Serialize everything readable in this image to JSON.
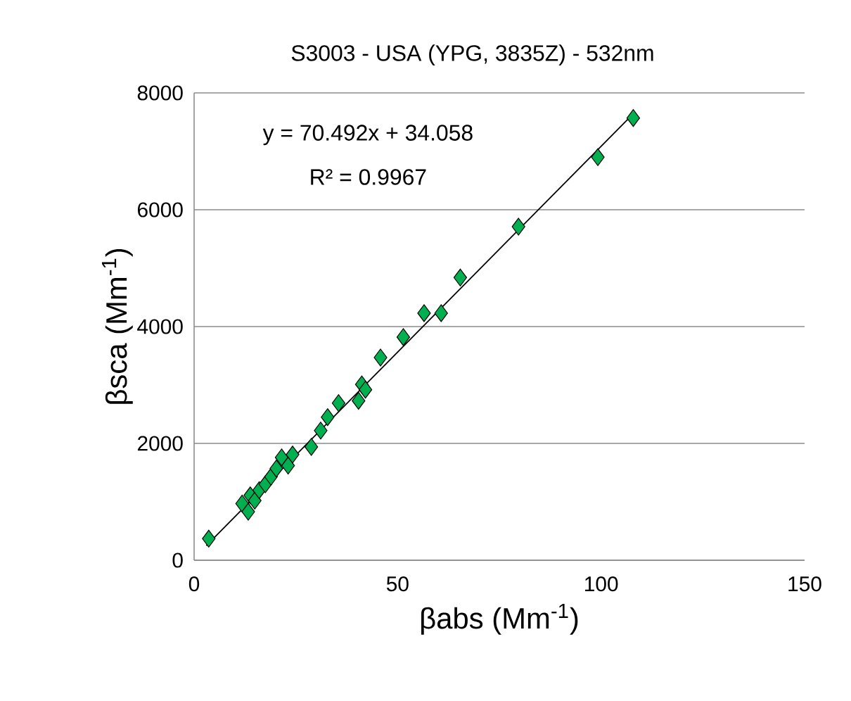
{
  "chart_data": {
    "type": "scatter",
    "title": "S3003 - USA (YPG, 3835Z) - 532nm",
    "xlabel": "βabs (Mm$^{-1}$)",
    "ylabel": "βsca (Mm$^{-1}$)",
    "annotations": [
      "y = 70.492x + 34.058",
      "R² = 0.9967"
    ],
    "series": [
      {
        "color": "#00b050",
        "marker": "diamond",
        "x": [
          3.6,
          11.8,
          13.3,
          13.8,
          14.9,
          16,
          17.5,
          18.9,
          20.2,
          21.5,
          23.1,
          24.2,
          28.8,
          31.1,
          32.8,
          35.5,
          40.4,
          41.2,
          42.1,
          45.8,
          51.4,
          56.5,
          60.7,
          65.4,
          79.7,
          99.2,
          107.9
        ],
        "values": [
          370,
          970,
          830,
          1110,
          1020,
          1200,
          1300,
          1430,
          1570,
          1760,
          1620,
          1810,
          1940,
          2220,
          2450,
          2690,
          2730,
          3010,
          2920,
          3470,
          3820,
          4230,
          4230,
          4840,
          5710,
          6900,
          7570
        ]
      },
      {
        "type": "line",
        "color": "#000000",
        "marker": "none",
        "x": [
          3,
          108
        ],
        "values": [
          250,
          7650
        ]
      }
    ],
    "xlim": [
      0,
      150
    ],
    "xticks": [
      0,
      50,
      100,
      150
    ],
    "ylim": [
      0,
      8000
    ],
    "yticks": [
      0,
      2000,
      4000,
      6000,
      8000
    ],
    "grid": "y"
  }
}
